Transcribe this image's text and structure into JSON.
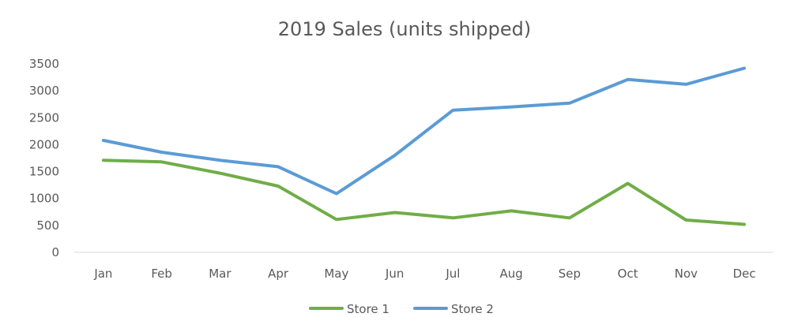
{
  "chart_data": {
    "type": "line",
    "title": "2019 Sales (units shipped)",
    "xlabel": "",
    "ylabel": "",
    "categories": [
      "Jan",
      "Feb",
      "Mar",
      "Apr",
      "May",
      "Jun",
      "Jul",
      "Aug",
      "Sep",
      "Oct",
      "Nov",
      "Dec"
    ],
    "ylim": [
      0,
      3500
    ],
    "yticks": [
      0,
      500,
      1000,
      1500,
      2000,
      2500,
      3000,
      3500
    ],
    "grid": false,
    "legend_position": "bottom",
    "series": [
      {
        "name": "Store 1",
        "color": "#70AD47",
        "values": [
          1710,
          1680,
          1470,
          1230,
          610,
          740,
          640,
          770,
          640,
          1280,
          600,
          520
        ]
      },
      {
        "name": "Store 2",
        "color": "#5B9BD5",
        "values": [
          2080,
          1860,
          1710,
          1590,
          1090,
          1800,
          2640,
          2700,
          2770,
          3210,
          3120,
          3420
        ]
      }
    ]
  }
}
